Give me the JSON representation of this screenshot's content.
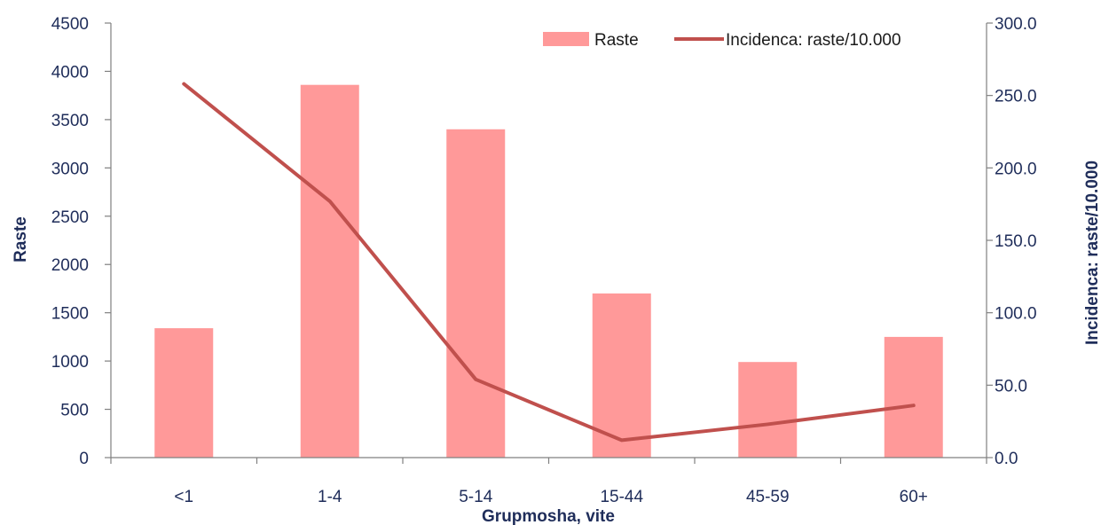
{
  "chart_data": {
    "type": "bar",
    "categories": [
      "<1",
      "1-4",
      "5-14",
      "15-44",
      "45-59",
      "60+"
    ],
    "series": [
      {
        "name": "Raste",
        "type": "bar",
        "axis": "left",
        "color": "#ff9999",
        "values": [
          1340,
          3860,
          3400,
          1700,
          990,
          1250
        ]
      },
      {
        "name": "Incidenca: raste/10.000",
        "type": "line",
        "axis": "right",
        "color": "#c0504d",
        "values": [
          258.0,
          177.0,
          54.0,
          12.0,
          23.0,
          36.0
        ]
      }
    ],
    "xlabel": "Grupmosha, vite",
    "ylabel": "Raste",
    "y2label": "Incidenca: raste/10.000",
    "ylim": [
      0,
      4500
    ],
    "y2lim": [
      0,
      300
    ],
    "yticks": [
      "0",
      "500",
      "1000",
      "1500",
      "2000",
      "2500",
      "3000",
      "3500",
      "4000",
      "4500"
    ],
    "y2ticks": [
      "0.0",
      "50.0",
      "100.0",
      "150.0",
      "200.0",
      "250.0",
      "300.0"
    ],
    "legend": "top-right",
    "grid": false
  }
}
